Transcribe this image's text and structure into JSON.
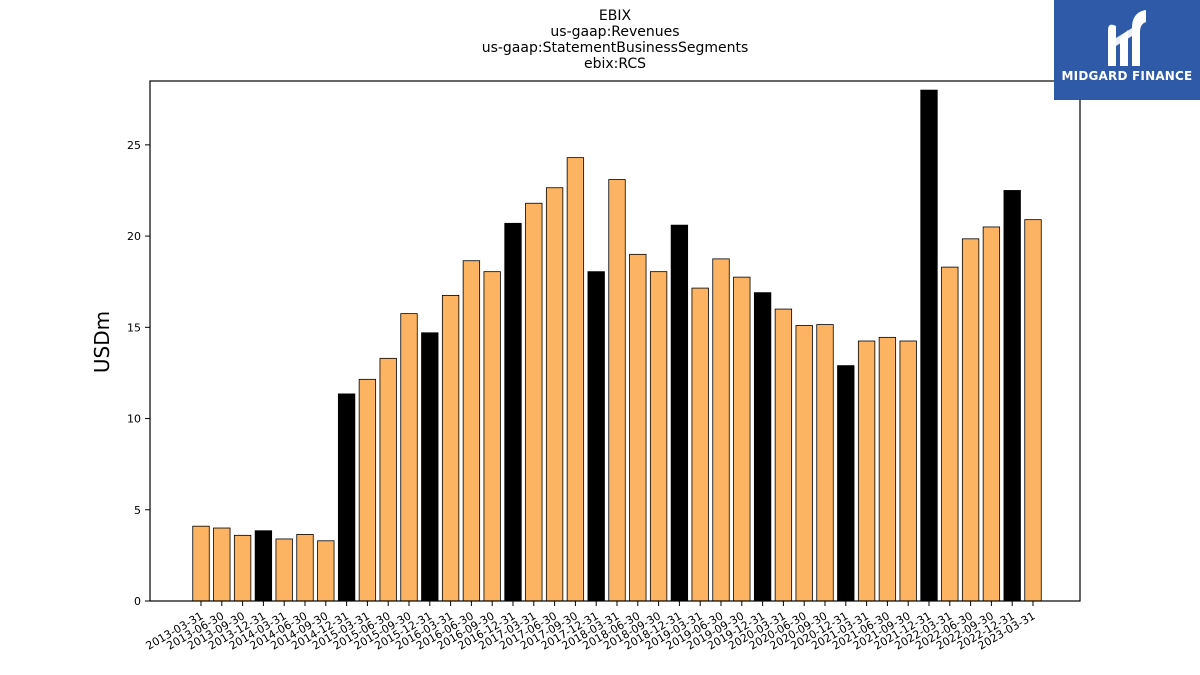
{
  "logo": {
    "text": "MIDGARD FINANCE",
    "background": "#2e5aa8"
  },
  "chart_data": {
    "type": "bar",
    "title_lines": [
      "EBIX",
      "us-gaap:Revenues",
      "us-gaap:StatementBusinessSegments",
      "ebix:RCS"
    ],
    "xlabel": "",
    "ylabel": "USDm",
    "ylim": [
      0,
      28.5
    ],
    "yticks": [
      0,
      5,
      10,
      15,
      20,
      25
    ],
    "grid": false,
    "colors": {
      "quarter": "#fdb462",
      "year_end": "#000000",
      "edge": "#000000"
    },
    "categories": [
      "2013-03-31",
      "2013-06-30",
      "2013-09-30",
      "2013-12-31",
      "2014-03-31",
      "2014-06-30",
      "2014-09-30",
      "2014-12-31",
      "2015-03-31",
      "2015-06-30",
      "2015-09-30",
      "2015-12-31",
      "2016-03-31",
      "2016-06-30",
      "2016-09-30",
      "2016-12-31",
      "2017-03-31",
      "2017-06-30",
      "2017-09-30",
      "2017-12-31",
      "2018-03-31",
      "2018-06-30",
      "2018-09-30",
      "2018-12-31",
      "2019-03-31",
      "2019-06-30",
      "2019-09-30",
      "2019-12-31",
      "2020-03-31",
      "2020-06-30",
      "2020-09-30",
      "2020-12-31",
      "2021-03-31",
      "2021-06-30",
      "2021-09-30",
      "2021-12-31",
      "2022-03-31",
      "2022-06-30",
      "2022-09-30",
      "2022-12-31",
      "2023-03-31"
    ],
    "values": [
      4.1,
      4.0,
      3.6,
      3.85,
      3.4,
      3.65,
      3.3,
      11.35,
      12.15,
      13.3,
      15.75,
      14.7,
      16.75,
      18.65,
      18.05,
      20.7,
      21.8,
      22.65,
      24.3,
      18.05,
      23.1,
      19.0,
      18.05,
      20.6,
      17.15,
      18.75,
      17.75,
      16.9,
      16.0,
      15.1,
      15.15,
      12.9,
      14.25,
      14.45,
      14.25,
      28.0,
      18.3,
      19.85,
      20.5,
      22.5,
      20.9
    ],
    "highlight": [
      false,
      false,
      false,
      true,
      false,
      false,
      false,
      true,
      false,
      false,
      false,
      true,
      false,
      false,
      false,
      true,
      false,
      false,
      false,
      true,
      false,
      false,
      false,
      true,
      false,
      false,
      false,
      true,
      false,
      false,
      false,
      true,
      false,
      false,
      false,
      true,
      false,
      false,
      false,
      true,
      false
    ]
  }
}
